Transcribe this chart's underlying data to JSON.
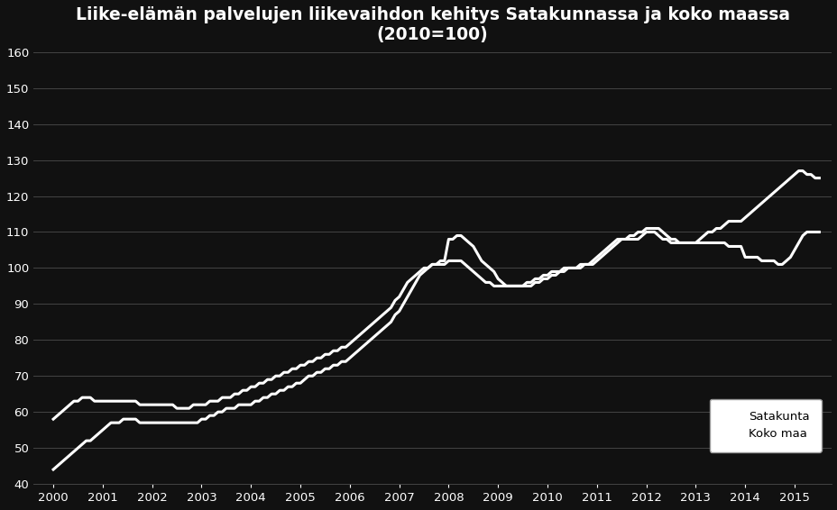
{
  "title_line1": "Liike-elämän palvelujen liikevaihdon kehitys Satakunnassa ja koko maassa",
  "title_line2": "(2010=100)",
  "background_color": "#111111",
  "text_color": "#ffffff",
  "line_color": "#ffffff",
  "grid_color": "#444444",
  "ylim": [
    40,
    160
  ],
  "yticks": [
    40,
    50,
    60,
    70,
    80,
    90,
    100,
    110,
    120,
    130,
    140,
    150,
    160
  ],
  "xticks": [
    2000,
    2001,
    2002,
    2003,
    2004,
    2005,
    2006,
    2007,
    2008,
    2009,
    2010,
    2011,
    2012,
    2013,
    2014,
    2015
  ],
  "xlim": [
    1999.6,
    2015.75
  ],
  "legend_labels": [
    "Satakunta",
    "Koko maa"
  ],
  "legend_bg": "#ffffff",
  "legend_text_color": "#000000",
  "satakunta_y": [
    44,
    45,
    46,
    47,
    48,
    49,
    50,
    51,
    52,
    52,
    53,
    54,
    55,
    56,
    57,
    57,
    57,
    58,
    58,
    58,
    58,
    57,
    57,
    57,
    57,
    57,
    57,
    57,
    57,
    57,
    57,
    57,
    57,
    57,
    57,
    57,
    58,
    58,
    59,
    59,
    60,
    60,
    61,
    61,
    61,
    62,
    62,
    62,
    62,
    63,
    63,
    64,
    64,
    65,
    65,
    66,
    66,
    67,
    67,
    68,
    68,
    69,
    70,
    70,
    71,
    71,
    72,
    72,
    73,
    73,
    74,
    74,
    75,
    76,
    77,
    78,
    79,
    80,
    81,
    82,
    83,
    84,
    85,
    87,
    88,
    90,
    92,
    94,
    96,
    98,
    99,
    100,
    101,
    101,
    102,
    102,
    108,
    108,
    109,
    109,
    108,
    107,
    106,
    104,
    102,
    101,
    100,
    99,
    97,
    96,
    95,
    95,
    95,
    95,
    95,
    96,
    96,
    97,
    97,
    98,
    98,
    99,
    99,
    99,
    100,
    100,
    100,
    100,
    100,
    101,
    101,
    102,
    103,
    104,
    105,
    106,
    107,
    108,
    108,
    108,
    108,
    108,
    108,
    109,
    110,
    110,
    110,
    109,
    108,
    108,
    107,
    107,
    107,
    107,
    107,
    107,
    107,
    107,
    107,
    107,
    107,
    107,
    107,
    107,
    106,
    106,
    106,
    106,
    103,
    103,
    103,
    103,
    102,
    102,
    102,
    102,
    101,
    101,
    102,
    103,
    105,
    107,
    109,
    110,
    110,
    110,
    110
  ],
  "koko_maa_y": [
    58,
    59,
    60,
    61,
    62,
    63,
    63,
    64,
    64,
    64,
    63,
    63,
    63,
    63,
    63,
    63,
    63,
    63,
    63,
    63,
    63,
    62,
    62,
    62,
    62,
    62,
    62,
    62,
    62,
    62,
    61,
    61,
    61,
    61,
    62,
    62,
    62,
    62,
    63,
    63,
    63,
    64,
    64,
    64,
    65,
    65,
    66,
    66,
    67,
    67,
    68,
    68,
    69,
    69,
    70,
    70,
    71,
    71,
    72,
    72,
    73,
    73,
    74,
    74,
    75,
    75,
    76,
    76,
    77,
    77,
    78,
    78,
    79,
    80,
    81,
    82,
    83,
    84,
    85,
    86,
    87,
    88,
    89,
    91,
    92,
    94,
    96,
    97,
    98,
    99,
    100,
    100,
    101,
    101,
    101,
    101,
    102,
    102,
    102,
    102,
    101,
    100,
    99,
    98,
    97,
    96,
    96,
    95,
    95,
    95,
    95,
    95,
    95,
    95,
    95,
    95,
    95,
    96,
    96,
    97,
    97,
    98,
    98,
    99,
    99,
    100,
    100,
    100,
    101,
    101,
    101,
    101,
    102,
    103,
    104,
    105,
    106,
    107,
    108,
    108,
    109,
    109,
    110,
    110,
    111,
    111,
    111,
    111,
    110,
    109,
    108,
    108,
    107,
    107,
    107,
    107,
    107,
    108,
    109,
    110,
    110,
    111,
    111,
    112,
    113,
    113,
    113,
    113,
    114,
    115,
    116,
    117,
    118,
    119,
    120,
    121,
    122,
    123,
    124,
    125,
    126,
    127,
    127,
    126,
    126,
    125,
    125
  ]
}
